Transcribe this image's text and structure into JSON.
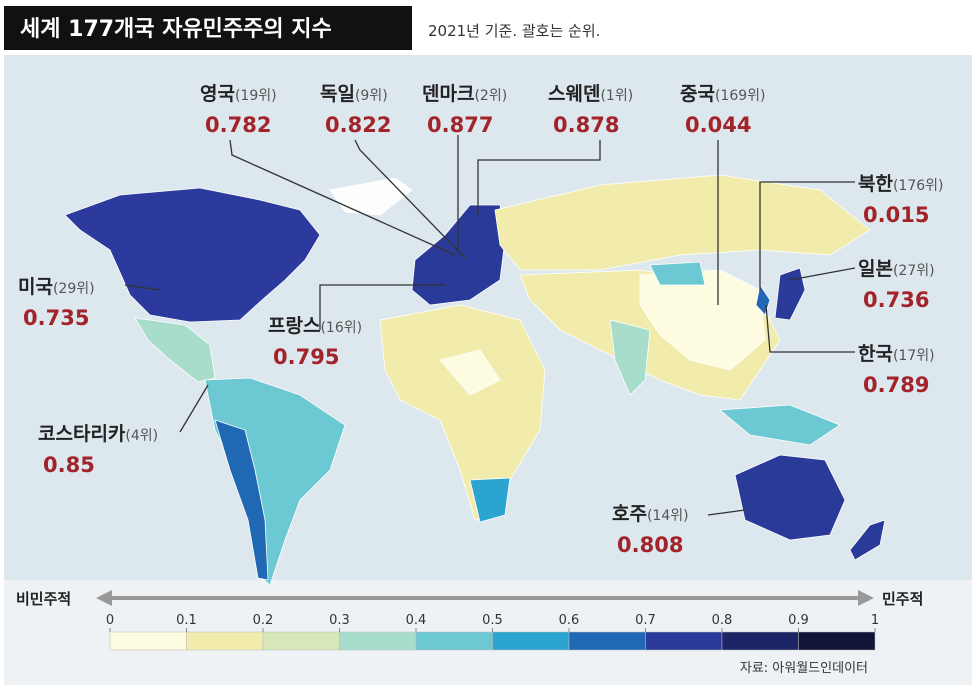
{
  "title": "세계 177개국 자유민주주의 지수",
  "subtitle": "2021년 기준. 괄호는 순위.",
  "callouts": [
    {
      "country": "영국",
      "rank": "(19위)",
      "value": 0.782
    },
    {
      "country": "독일",
      "rank": "(9위)",
      "value": 0.822
    },
    {
      "country": "덴마크",
      "rank": "(2위)",
      "value": 0.877
    },
    {
      "country": "스웨덴",
      "rank": "(1위)",
      "value": 0.878
    },
    {
      "country": "중국",
      "rank": "(169위)",
      "value": 0.044
    },
    {
      "country": "북한",
      "rank": "(176위)",
      "value": 0.015
    },
    {
      "country": "일본",
      "rank": "(27위)",
      "value": 0.736
    },
    {
      "country": "한국",
      "rank": "(17위)",
      "value": 0.789
    },
    {
      "country": "미국",
      "rank": "(29위)",
      "value": 0.735
    },
    {
      "country": "프랑스",
      "rank": "(16위)",
      "value": 0.795
    },
    {
      "country": "코스타리카",
      "rank": "(4위)",
      "value": 0.85
    },
    {
      "country": "호주",
      "rank": "(14위)",
      "value": 0.808
    }
  ],
  "legend": {
    "left_label": "비민주적",
    "right_label": "민주적",
    "ticks": [
      0,
      0.1,
      0.2,
      0.3,
      0.4,
      0.5,
      0.6,
      0.7,
      0.8,
      0.9,
      1
    ],
    "colors": [
      "#fdfbe0",
      "#f1ecac",
      "#d6e8b8",
      "#a8dccb",
      "#6cc8d2",
      "#2ca4d0",
      "#2067b4",
      "#2a3a98",
      "#1d2466",
      "#101538"
    ]
  },
  "source": "자료: 아워월드인데이터"
}
